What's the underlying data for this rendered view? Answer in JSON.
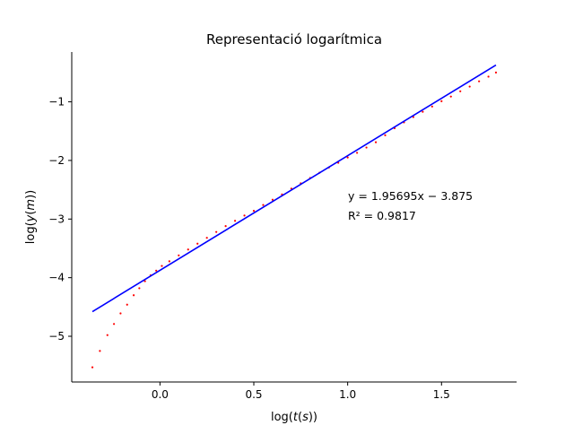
{
  "chart_data": {
    "type": "scatter",
    "title": "Representació logarítmica",
    "xlabel": "log(t(s))",
    "ylabel": "log(y(m))",
    "xlim": [
      -0.47,
      1.9
    ],
    "ylim": [
      -5.78,
      -0.15
    ],
    "xticks": [
      0.0,
      0.5,
      1.0,
      1.5
    ],
    "xtick_labels": [
      "0.0",
      "0.5",
      "1.0",
      "1.5"
    ],
    "yticks": [
      -5,
      -4,
      -3,
      -2,
      -1
    ],
    "ytick_labels": [
      "−5",
      "−4",
      "−3",
      "−2",
      "−1"
    ],
    "grid": false,
    "spines": "left-bottom",
    "series": [
      {
        "kind": "scatter",
        "color": "#ff0000",
        "x_range": [
          -0.36,
          1.79
        ],
        "points": [
          [
            -0.36,
            -5.53
          ],
          [
            -0.32,
            -5.25
          ],
          [
            -0.28,
            -4.98
          ],
          [
            -0.245,
            -4.79
          ],
          [
            -0.21,
            -4.61
          ],
          [
            -0.175,
            -4.46
          ],
          [
            -0.14,
            -4.3
          ],
          [
            -0.11,
            -4.18
          ],
          [
            -0.08,
            -4.06
          ],
          [
            -0.05,
            -3.96
          ],
          [
            -0.02,
            -3.88
          ],
          [
            0.01,
            -3.8
          ],
          [
            0.05,
            -3.72
          ],
          [
            0.1,
            -3.62
          ],
          [
            0.15,
            -3.52
          ],
          [
            0.2,
            -3.42
          ],
          [
            0.25,
            -3.32
          ],
          [
            0.3,
            -3.22
          ],
          [
            0.35,
            -3.12
          ],
          [
            0.4,
            -3.03
          ],
          [
            0.45,
            -2.94
          ],
          [
            0.5,
            -2.86
          ],
          [
            0.55,
            -2.76
          ],
          [
            0.6,
            -2.67
          ],
          [
            0.65,
            -2.58
          ],
          [
            0.7,
            -2.48
          ],
          [
            0.75,
            -2.39
          ],
          [
            0.8,
            -2.3
          ],
          [
            0.85,
            -2.21
          ],
          [
            0.9,
            -2.12
          ],
          [
            0.95,
            -2.04
          ],
          [
            1.0,
            -1.95
          ],
          [
            1.05,
            -1.87
          ],
          [
            1.1,
            -1.78
          ],
          [
            1.15,
            -1.69
          ],
          [
            1.2,
            -1.57
          ],
          [
            1.25,
            -1.45
          ],
          [
            1.3,
            -1.35
          ],
          [
            1.35,
            -1.26
          ],
          [
            1.4,
            -1.17
          ],
          [
            1.45,
            -1.08
          ],
          [
            1.5,
            -0.99
          ],
          [
            1.55,
            -0.91
          ],
          [
            1.6,
            -0.82
          ],
          [
            1.65,
            -0.74
          ],
          [
            1.7,
            -0.65
          ],
          [
            1.75,
            -0.57
          ],
          [
            1.79,
            -0.5
          ]
        ]
      },
      {
        "kind": "line",
        "color": "#0000ff",
        "slope": 1.95695,
        "intercept": -3.875,
        "x_range": [
          -0.36,
          1.79
        ]
      }
    ],
    "annotations": {
      "equation": "y = 1.95695x − 3.875",
      "r_squared": "R² = 0.9817"
    }
  }
}
